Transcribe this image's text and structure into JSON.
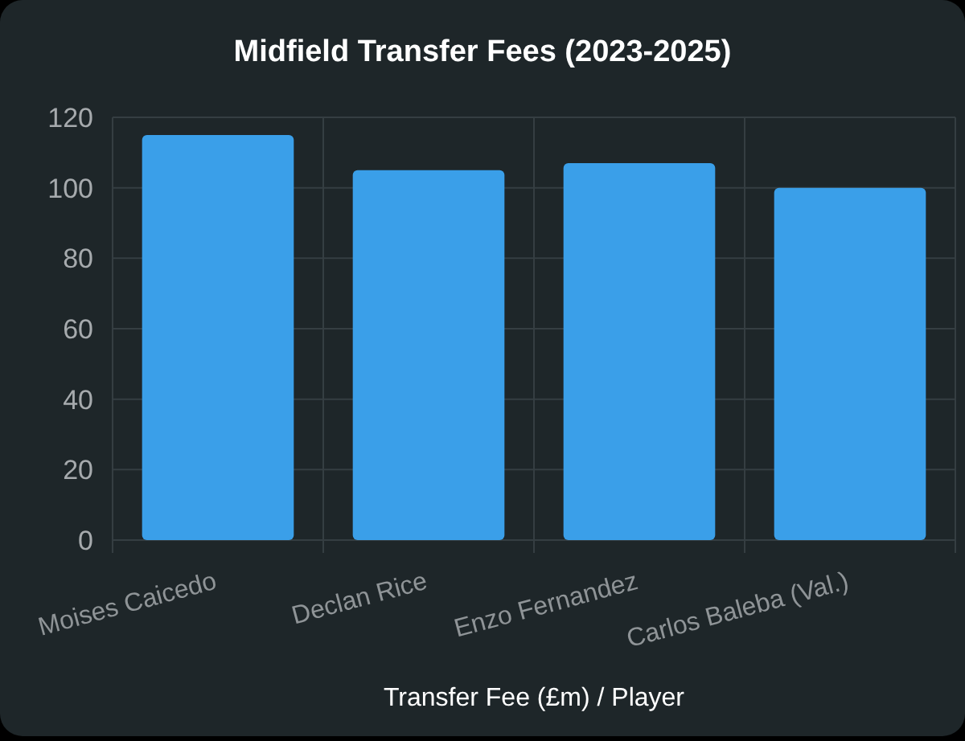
{
  "chart_data": {
    "type": "bar",
    "title": "Midfield Transfer Fees (2023-2025)",
    "xlabel": "Transfer Fee (£m) / Player",
    "categories": [
      "Moises Caicedo",
      "Declan Rice",
      "Enzo Fernandez",
      "Carlos Baleba (Val.)"
    ],
    "values": [
      115,
      105,
      107,
      100
    ],
    "color": "#3a9fe9",
    "ylim": [
      0,
      120
    ],
    "yticks": [
      0,
      20,
      40,
      60,
      80,
      100,
      120
    ],
    "grid": true
  }
}
